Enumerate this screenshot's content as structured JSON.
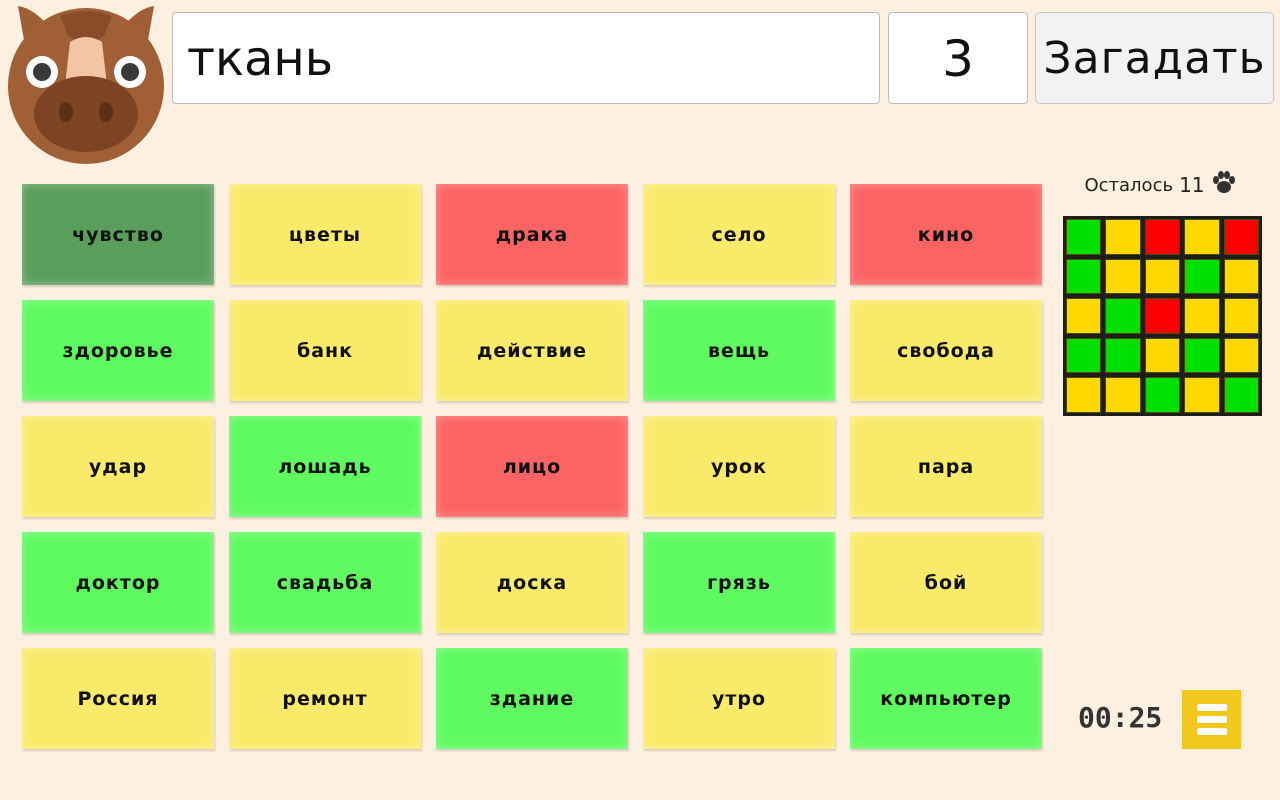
{
  "header": {
    "clue": "ткань",
    "count": "3",
    "guess_label": "Загадать"
  },
  "cards": [
    {
      "word": "чувство",
      "color": "#5a9e5c"
    },
    {
      "word": "цветы",
      "color": "#faea6a"
    },
    {
      "word": "драка",
      "color": "#fc6464"
    },
    {
      "word": "село",
      "color": "#faea6a"
    },
    {
      "word": "кино",
      "color": "#fc6464"
    },
    {
      "word": "здоровье",
      "color": "#5ffa5f"
    },
    {
      "word": "банк",
      "color": "#faea6a"
    },
    {
      "word": "действие",
      "color": "#faea6a"
    },
    {
      "word": "вещь",
      "color": "#5ffa5f"
    },
    {
      "word": "свобода",
      "color": "#faea6a"
    },
    {
      "word": "удар",
      "color": "#faea6a"
    },
    {
      "word": "лошадь",
      "color": "#5ffa5f"
    },
    {
      "word": "лицо",
      "color": "#fc6464"
    },
    {
      "word": "урок",
      "color": "#faea6a"
    },
    {
      "word": "пара",
      "color": "#faea6a"
    },
    {
      "word": "доктор",
      "color": "#5ffa5f"
    },
    {
      "word": "свадьба",
      "color": "#5ffa5f"
    },
    {
      "word": "доска",
      "color": "#faea6a"
    },
    {
      "word": "грязь",
      "color": "#5ffa5f"
    },
    {
      "word": "бой",
      "color": "#faea6a"
    },
    {
      "word": "Россия",
      "color": "#faea6a"
    },
    {
      "word": "ремонт",
      "color": "#faea6a"
    },
    {
      "word": "здание",
      "color": "#5ffa5f"
    },
    {
      "word": "утро",
      "color": "#faea6a"
    },
    {
      "word": "компьютер",
      "color": "#5ffa5f"
    }
  ],
  "remaining": {
    "label": "Осталось",
    "count": "11",
    "icon": "paw-icon"
  },
  "minimap": [
    "#00e000",
    "#ffd800",
    "#ff0000",
    "#ffd800",
    "#ff0000",
    "#00e000",
    "#ffd800",
    "#ffd800",
    "#00e000",
    "#ffd800",
    "#ffd800",
    "#00e000",
    "#ff0000",
    "#ffd800",
    "#ffd800",
    "#00e000",
    "#00e000",
    "#ffd800",
    "#00e000",
    "#ffd800",
    "#ffd800",
    "#ffd800",
    "#00e000",
    "#ffd800",
    "#00e000"
  ],
  "timer": "00:25",
  "menu_icon": "hamburger-icon",
  "avatar_icon": "horse-avatar-icon"
}
